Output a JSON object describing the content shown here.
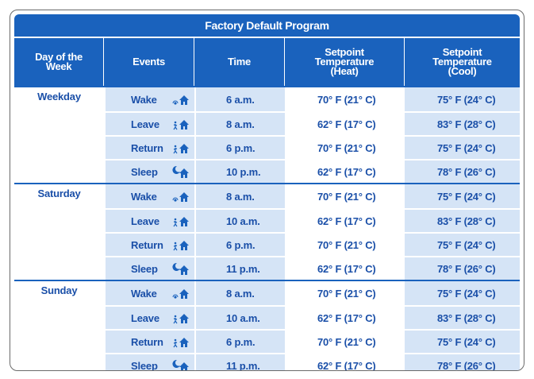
{
  "title": "Factory Default Program",
  "headers": {
    "day": "Day of the Week",
    "events": "Events",
    "time": "Time",
    "heat": "Setpoint Temperature (Heat)",
    "cool": "Setpoint Temperature (Cool)"
  },
  "groups": [
    {
      "day": "Weekday",
      "rows": [
        {
          "event": "Wake",
          "icon": "wake-icon",
          "time": "6 a.m.",
          "heat": "70° F (21° C)",
          "cool": "75° F (24° C)"
        },
        {
          "event": "Leave",
          "icon": "leave-icon",
          "time": "8 a.m.",
          "heat": "62° F (17° C)",
          "cool": "83° F (28° C)"
        },
        {
          "event": "Return",
          "icon": "return-icon",
          "time": "6 p.m.",
          "heat": "70° F (21° C)",
          "cool": "75° F (24° C)"
        },
        {
          "event": "Sleep",
          "icon": "sleep-icon",
          "time": "10 p.m.",
          "heat": "62° F (17° C)",
          "cool": "78° F (26° C)"
        }
      ]
    },
    {
      "day": "Saturday",
      "rows": [
        {
          "event": "Wake",
          "icon": "wake-icon",
          "time": "8 a.m.",
          "heat": "70° F (21° C)",
          "cool": "75° F (24° C)"
        },
        {
          "event": "Leave",
          "icon": "leave-icon",
          "time": "10 a.m.",
          "heat": "62° F (17° C)",
          "cool": "83° F (28° C)"
        },
        {
          "event": "Return",
          "icon": "return-icon",
          "time": "6 p.m.",
          "heat": "70° F (21° C)",
          "cool": "75° F (24° C)"
        },
        {
          "event": "Sleep",
          "icon": "sleep-icon",
          "time": "11 p.m.",
          "heat": "62° F (17° C)",
          "cool": "78° F (26° C)"
        }
      ]
    },
    {
      "day": "Sunday",
      "rows": [
        {
          "event": "Wake",
          "icon": "wake-icon",
          "time": "8 a.m.",
          "heat": "70° F (21° C)",
          "cool": "75° F (24° C)"
        },
        {
          "event": "Leave",
          "icon": "leave-icon",
          "time": "10 a.m.",
          "heat": "62° F (17° C)",
          "cool": "83° F (28° C)"
        },
        {
          "event": "Return",
          "icon": "return-icon",
          "time": "6 p.m.",
          "heat": "70° F (21° C)",
          "cool": "75° F (24° C)"
        },
        {
          "event": "Sleep",
          "icon": "sleep-icon",
          "time": "11 p.m.",
          "heat": "62° F (17° C)",
          "cool": "78° F (26° C)"
        }
      ]
    }
  ],
  "colors": {
    "header_blue": "#1a62bd",
    "cell_light_blue": "#d5e4f6",
    "text_blue": "#1a4fa8"
  }
}
